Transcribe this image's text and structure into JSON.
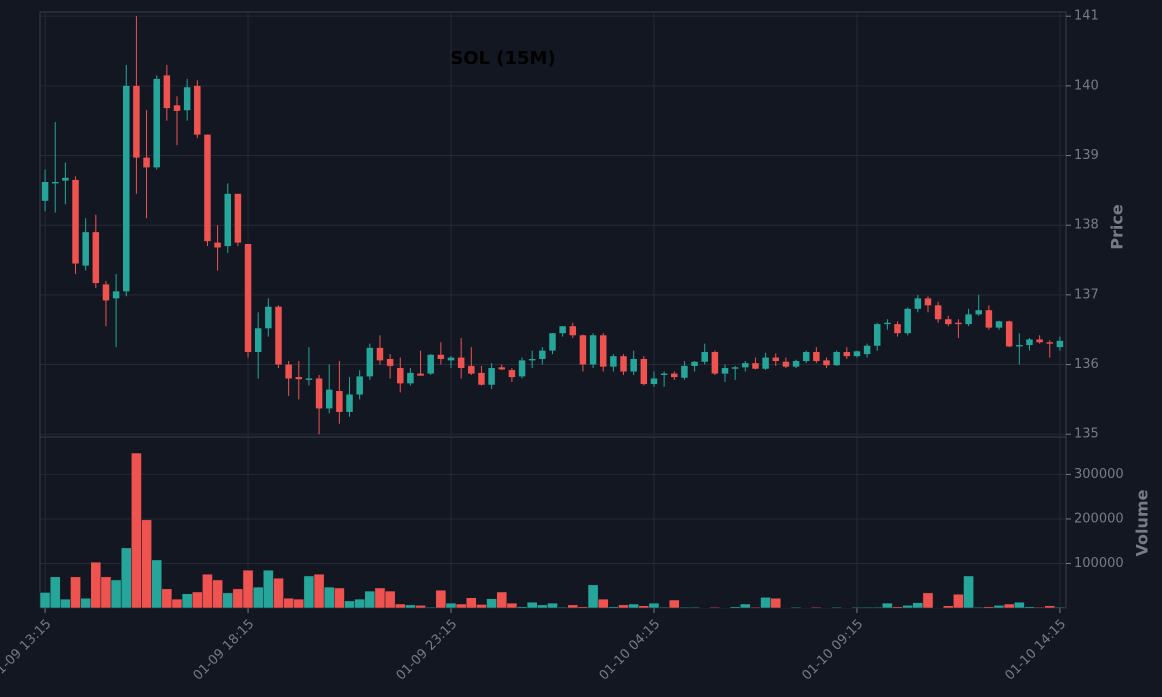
{
  "chart_data": {
    "type": "candlestick",
    "title": "SOL (15M)",
    "y_label": "Price",
    "y2_label": "Volume",
    "categories": [
      "01-09 13:15",
      null,
      null,
      null,
      null,
      null,
      null,
      null,
      null,
      null,
      null,
      null,
      null,
      null,
      null,
      null,
      null,
      null,
      null,
      null,
      "01-09 18:15",
      null,
      null,
      null,
      null,
      null,
      null,
      null,
      null,
      null,
      null,
      null,
      null,
      null,
      null,
      null,
      null,
      null,
      null,
      null,
      "01-09 23:15",
      null,
      null,
      null,
      null,
      null,
      null,
      null,
      null,
      null,
      null,
      null,
      null,
      null,
      null,
      null,
      null,
      null,
      null,
      null,
      "01-10 04:15",
      null,
      null,
      null,
      null,
      null,
      null,
      null,
      null,
      null,
      null,
      null,
      null,
      null,
      null,
      null,
      null,
      null,
      null,
      null,
      "01-10 09:15",
      null,
      null,
      null,
      null,
      null,
      null,
      null,
      null,
      null,
      null,
      null,
      null,
      null,
      null,
      null,
      null,
      null,
      null,
      null,
      "01-10 14:15"
    ],
    "open": [
      138.35,
      138.6,
      138.64,
      138.65,
      137.42,
      137.9,
      137.15,
      136.95,
      137.05,
      140.0,
      138.97,
      138.83,
      140.15,
      139.72,
      139.65,
      140.0,
      139.3,
      137.75,
      137.7,
      138.45,
      137.73,
      136.18,
      136.52,
      136.83,
      136.0,
      135.82,
      135.78,
      135.8,
      135.37,
      135.62,
      135.32,
      135.57,
      135.83,
      136.24,
      136.08,
      135.95,
      135.73,
      135.87,
      135.87,
      136.14,
      136.06,
      136.1,
      135.98,
      135.88,
      135.71,
      135.96,
      135.92,
      135.83,
      136.06,
      136.08,
      136.2,
      136.45,
      136.55,
      136.42,
      136.0,
      136.42,
      135.97,
      136.12,
      135.9,
      136.08,
      135.72,
      135.85,
      135.87,
      135.81,
      135.98,
      136.04,
      136.18,
      135.87,
      135.94,
      135.96,
      136.02,
      135.94,
      136.1,
      136.04,
      135.97,
      136.05,
      136.18,
      136.06,
      135.99,
      136.18,
      136.12,
      136.15,
      136.27,
      136.58,
      136.58,
      136.45,
      136.8,
      136.95,
      136.85,
      136.65,
      136.6,
      136.58,
      136.72,
      136.78,
      136.53,
      136.62,
      136.26,
      136.28,
      136.36,
      136.32,
      136.25
    ],
    "high": [
      138.8,
      139.48,
      138.9,
      138.7,
      138.1,
      138.15,
      137.2,
      137.3,
      140.3,
      141.0,
      139.65,
      140.15,
      140.3,
      139.85,
      140.1,
      140.08,
      139.3,
      138.0,
      138.6,
      138.45,
      137.73,
      136.75,
      136.95,
      136.85,
      136.05,
      136.05,
      136.25,
      135.85,
      136.0,
      136.05,
      135.82,
      135.92,
      136.3,
      136.42,
      136.15,
      136.1,
      135.95,
      136.2,
      136.15,
      136.32,
      136.12,
      136.38,
      136.25,
      135.98,
      136.02,
      136.0,
      135.95,
      136.1,
      136.2,
      136.25,
      136.45,
      136.55,
      136.6,
      136.43,
      136.45,
      136.45,
      136.15,
      136.15,
      136.2,
      136.12,
      135.9,
      135.9,
      135.9,
      136.05,
      136.05,
      136.3,
      136.2,
      136.0,
      135.98,
      136.05,
      136.1,
      136.17,
      136.16,
      136.1,
      136.07,
      136.2,
      136.25,
      136.1,
      136.2,
      136.25,
      136.2,
      136.3,
      136.6,
      136.65,
      136.62,
      136.82,
      137.0,
      136.98,
      136.9,
      136.7,
      136.65,
      136.8,
      137.0,
      136.85,
      136.63,
      136.63,
      136.45,
      136.38,
      136.42,
      136.35,
      136.4
    ],
    "low": [
      138.2,
      138.18,
      138.3,
      137.3,
      137.35,
      137.1,
      136.55,
      136.25,
      136.98,
      138.45,
      138.1,
      138.8,
      139.5,
      139.15,
      139.5,
      139.25,
      137.7,
      137.35,
      137.6,
      137.7,
      136.1,
      135.8,
      136.4,
      135.95,
      135.55,
      135.5,
      135.7,
      135.0,
      135.3,
      135.15,
      135.25,
      135.5,
      135.78,
      136.0,
      135.8,
      135.6,
      135.7,
      135.85,
      135.85,
      136.0,
      135.95,
      135.8,
      135.85,
      135.7,
      135.65,
      135.92,
      135.75,
      135.8,
      135.95,
      136.0,
      136.15,
      136.4,
      136.38,
      135.9,
      135.95,
      135.9,
      135.9,
      135.85,
      135.85,
      135.7,
      135.68,
      135.68,
      135.78,
      135.78,
      135.9,
      136.0,
      135.85,
      135.75,
      135.78,
      135.9,
      135.93,
      135.92,
      135.98,
      135.95,
      135.95,
      136.02,
      136.02,
      135.95,
      135.98,
      136.08,
      136.1,
      136.1,
      136.2,
      136.5,
      136.4,
      136.42,
      136.75,
      136.75,
      136.6,
      136.55,
      136.38,
      136.55,
      136.7,
      136.5,
      136.5,
      136.25,
      136.0,
      136.2,
      136.3,
      136.1,
      136.2
    ],
    "close": [
      138.62,
      138.62,
      138.68,
      137.45,
      137.9,
      137.17,
      136.92,
      137.05,
      140.0,
      138.97,
      138.83,
      140.1,
      139.68,
      139.64,
      139.98,
      139.3,
      137.77,
      137.68,
      138.45,
      137.75,
      136.18,
      136.52,
      136.83,
      136.0,
      135.8,
      135.79,
      135.8,
      135.37,
      135.64,
      135.32,
      135.57,
      135.83,
      136.24,
      136.06,
      135.98,
      135.73,
      135.88,
      135.84,
      136.14,
      136.08,
      136.1,
      135.95,
      135.87,
      135.71,
      135.95,
      135.93,
      135.82,
      136.06,
      136.08,
      136.2,
      136.45,
      136.55,
      136.42,
      136.0,
      136.42,
      135.97,
      136.12,
      135.9,
      136.08,
      135.72,
      135.8,
      135.87,
      135.82,
      135.98,
      136.04,
      136.18,
      135.87,
      135.95,
      135.96,
      136.02,
      135.94,
      136.1,
      136.05,
      135.97,
      136.05,
      136.18,
      136.05,
      135.99,
      136.18,
      136.12,
      136.19,
      136.27,
      136.58,
      136.6,
      136.45,
      136.8,
      136.95,
      136.85,
      136.65,
      136.58,
      136.58,
      136.72,
      136.78,
      136.53,
      136.62,
      136.26,
      136.28,
      136.36,
      136.32,
      136.3,
      136.34
    ],
    "volume": [
      35000,
      70000,
      20000,
      70000,
      22000,
      103000,
      70000,
      63000,
      135000,
      348000,
      198000,
      108000,
      43000,
      20000,
      32000,
      36000,
      76000,
      63000,
      34000,
      43000,
      85000,
      47000,
      85000,
      67000,
      22000,
      20000,
      72000,
      76000,
      47000,
      45000,
      16000,
      20000,
      38000,
      45000,
      38000,
      9000,
      7000,
      6000,
      2000,
      40000,
      11000,
      9000,
      23000,
      8000,
      21000,
      36000,
      11000,
      3000,
      13000,
      7000,
      11000,
      2000,
      7000,
      3000,
      52000,
      20000,
      3000,
      7000,
      9000,
      5000,
      11000,
      2000,
      18000,
      2000,
      2000,
      1000,
      2000,
      1000,
      3000,
      9000,
      2000,
      24000,
      22000,
      1000,
      2000,
      1000,
      2000,
      1000,
      2000,
      1000,
      2000,
      2000,
      2000,
      11000,
      3000,
      6000,
      12000,
      34000,
      1000,
      5000,
      31000,
      72000,
      2000,
      3000,
      6000,
      9000,
      13000,
      3000,
      2000,
      5000,
      2000
    ],
    "ylim": [
      134.96,
      141.06
    ],
    "yticks": [
      135,
      136,
      137,
      138,
      139,
      140,
      141
    ],
    "y2lim": [
      0,
      384000
    ],
    "y2ticks": [
      100000,
      200000,
      300000
    ],
    "up_color": "#26a69a",
    "down_color": "#ef5350",
    "grid": true
  }
}
